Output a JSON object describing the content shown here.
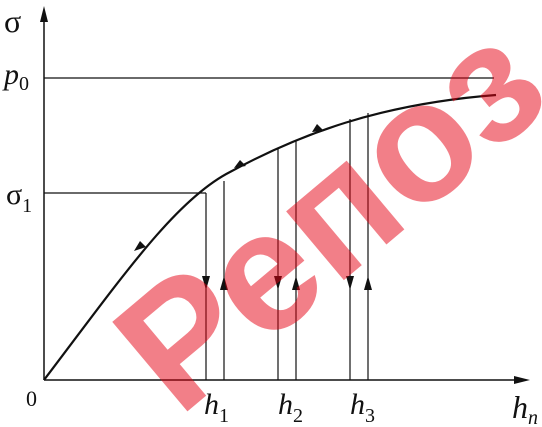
{
  "watermark": {
    "text": "Репоз",
    "color": "#e60012"
  },
  "axes": {
    "y_symbol": "σ",
    "origin_label": "0",
    "x_label_main": "h",
    "x_label_sub": "n"
  },
  "levels": {
    "p0": {
      "main": "p",
      "sub": "0"
    },
    "sigma1": {
      "main": "σ",
      "sub": "1"
    }
  },
  "markers": [
    {
      "main": "h",
      "sub": "1"
    },
    {
      "main": "h",
      "sub": "2"
    },
    {
      "main": "h",
      "sub": "3"
    }
  ],
  "colors": {
    "ink": "#111111",
    "background": "#ffffff"
  }
}
